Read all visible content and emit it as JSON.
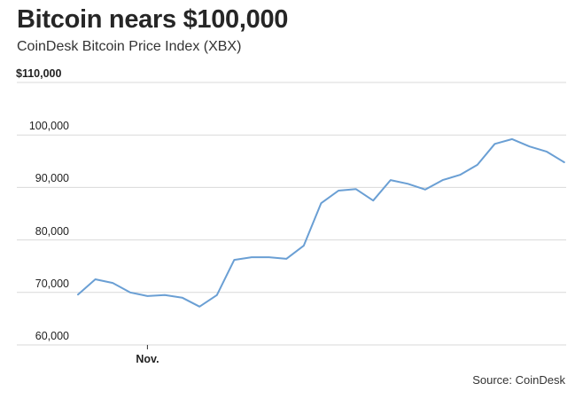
{
  "header": {
    "title": "Bitcoin nears $100,000",
    "subtitle": "CoinDesk Bitcoin Price Index (XBX)"
  },
  "y_axis": {
    "ticks": [
      {
        "label": "$110,000",
        "value": 110000
      },
      {
        "label": "100,000",
        "value": 100000
      },
      {
        "label": "90,000",
        "value": 90000
      },
      {
        "label": "80,000",
        "value": 80000
      },
      {
        "label": "70,000",
        "value": 70000
      },
      {
        "label": "60,000",
        "value": 60000
      }
    ]
  },
  "x_axis": {
    "ticks": [
      {
        "label": "Nov.",
        "index": 4
      }
    ]
  },
  "footer": {
    "source": "Source: CoinDesk"
  },
  "colors": {
    "line": "#6a9fd4",
    "grid": "#d9d9d9",
    "text": "#262626"
  },
  "chart_data": {
    "type": "line",
    "title": "Bitcoin nears $100,000",
    "subtitle": "CoinDesk Bitcoin Price Index (XBX)",
    "xlabel": "",
    "ylabel": "",
    "ylim": [
      60000,
      110000
    ],
    "grid": true,
    "legend": null,
    "x_tick_labels": [
      {
        "label": "Nov.",
        "index": 4
      }
    ],
    "annotations": [
      "Source: CoinDesk"
    ],
    "series": [
      {
        "name": "XBX",
        "values": [
          69600,
          72500,
          71800,
          70000,
          69300,
          69500,
          69000,
          67300,
          69500,
          76200,
          76700,
          76700,
          76400,
          78900,
          87000,
          89400,
          89700,
          87500,
          91400,
          90700,
          89600,
          91400,
          92400,
          94300,
          98300,
          99200,
          97800,
          96800,
          94800
        ]
      }
    ]
  }
}
